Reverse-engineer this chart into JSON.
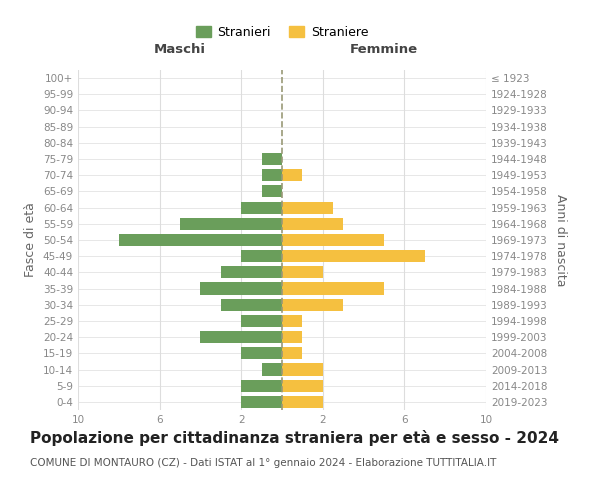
{
  "age_groups": [
    "0-4",
    "5-9",
    "10-14",
    "15-19",
    "20-24",
    "25-29",
    "30-34",
    "35-39",
    "40-44",
    "45-49",
    "50-54",
    "55-59",
    "60-64",
    "65-69",
    "70-74",
    "75-79",
    "80-84",
    "85-89",
    "90-94",
    "95-99",
    "100+"
  ],
  "birth_years": [
    "2019-2023",
    "2014-2018",
    "2009-2013",
    "2004-2008",
    "1999-2003",
    "1994-1998",
    "1989-1993",
    "1984-1988",
    "1979-1983",
    "1974-1978",
    "1969-1973",
    "1964-1968",
    "1959-1963",
    "1954-1958",
    "1949-1953",
    "1944-1948",
    "1939-1943",
    "1934-1938",
    "1929-1933",
    "1924-1928",
    "≤ 1923"
  ],
  "maschi": [
    2,
    2,
    1,
    2,
    4,
    2,
    3,
    4,
    3,
    2,
    8,
    5,
    2,
    1,
    1,
    1,
    0,
    0,
    0,
    0,
    0
  ],
  "femmine": [
    2,
    2,
    2,
    1,
    1,
    1,
    3,
    5,
    2,
    7,
    5,
    3,
    2.5,
    0,
    1,
    0,
    0,
    0,
    0,
    0,
    0
  ],
  "male_color": "#6a9e5b",
  "female_color": "#f5c040",
  "bar_height": 0.75,
  "xlim": 10,
  "title": "Popolazione per cittadinanza straniera per età e sesso - 2024",
  "subtitle": "COMUNE DI MONTAURO (CZ) - Dati ISTAT al 1° gennaio 2024 - Elaborazione TUTTITALIA.IT",
  "xlabel_left": "Maschi",
  "xlabel_right": "Femmine",
  "ylabel_left": "Fasce di età",
  "ylabel_right": "Anni di nascita",
  "legend_male": "Stranieri",
  "legend_female": "Straniere",
  "grid_color": "#dddddd",
  "background_color": "#ffffff",
  "label_color": "#888888",
  "title_fontsize": 11,
  "subtitle_fontsize": 7.5,
  "tick_fontsize": 7.5,
  "axis_label_fontsize": 9.5
}
